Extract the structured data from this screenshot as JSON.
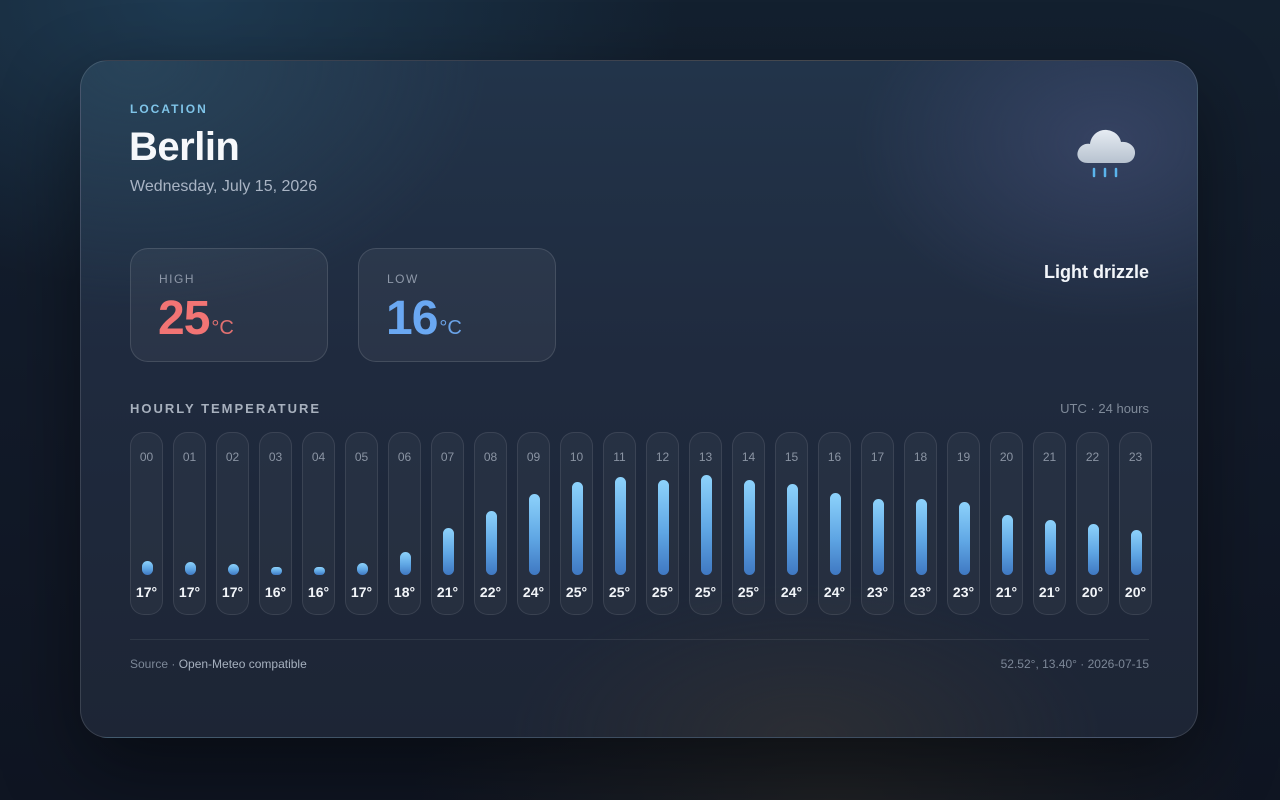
{
  "location": {
    "label": "LOCATION",
    "city": "Berlin",
    "date": "Wednesday, July 15, 2026"
  },
  "condition": {
    "label": "Light drizzle",
    "icon": "cloud-drizzle-icon"
  },
  "stats": {
    "high": {
      "label": "HIGH",
      "value": "25",
      "unit": "°C"
    },
    "low": {
      "label": "LOW",
      "value": "16",
      "unit": "°C"
    }
  },
  "hourly": {
    "title": "HOURLY TEMPERATURE",
    "meta": "UTC · 24 hours",
    "hours": [
      {
        "hour": "00",
        "temp": "17°",
        "value": 16.8
      },
      {
        "hour": "01",
        "temp": "17°",
        "value": 16.7
      },
      {
        "hour": "02",
        "temp": "17°",
        "value": 16.5
      },
      {
        "hour": "03",
        "temp": "16°",
        "value": 16.2
      },
      {
        "hour": "04",
        "temp": "16°",
        "value": 16.2
      },
      {
        "hour": "05",
        "temp": "17°",
        "value": 16.6
      },
      {
        "hour": "06",
        "temp": "18°",
        "value": 17.6
      },
      {
        "hour": "07",
        "temp": "21°",
        "value": 19.9
      },
      {
        "hour": "08",
        "temp": "22°",
        "value": 21.6
      },
      {
        "hour": "09",
        "temp": "24°",
        "value": 23.2
      },
      {
        "hour": "10",
        "temp": "25°",
        "value": 24.3
      },
      {
        "hour": "11",
        "temp": "25°",
        "value": 24.8
      },
      {
        "hour": "12",
        "temp": "25°",
        "value": 24.5
      },
      {
        "hour": "13",
        "temp": "25°",
        "value": 25.0
      },
      {
        "hour": "14",
        "temp": "25°",
        "value": 24.5
      },
      {
        "hour": "15",
        "temp": "24°",
        "value": 24.1
      },
      {
        "hour": "16",
        "temp": "24°",
        "value": 23.3
      },
      {
        "hour": "17",
        "temp": "23°",
        "value": 22.7
      },
      {
        "hour": "18",
        "temp": "23°",
        "value": 22.7
      },
      {
        "hour": "19",
        "temp": "23°",
        "value": 22.4
      },
      {
        "hour": "20",
        "temp": "21°",
        "value": 21.2
      },
      {
        "hour": "21",
        "temp": "21°",
        "value": 20.7
      },
      {
        "hour": "22",
        "temp": "20°",
        "value": 20.3
      },
      {
        "hour": "23",
        "temp": "20°",
        "value": 19.7
      }
    ],
    "scale_min": 16,
    "scale_max": 25
  },
  "footer": {
    "source_prefix": "Source · ",
    "source_name": "Open-Meteo compatible",
    "coords": "52.52°, 13.40° · 2026-07-15"
  },
  "colors": {
    "accent_label": "#7fc4e8",
    "high": "#f27474",
    "low": "#6aa8f2",
    "bar_top": "#8dd2fb",
    "bar_bottom": "#3f78c2"
  }
}
